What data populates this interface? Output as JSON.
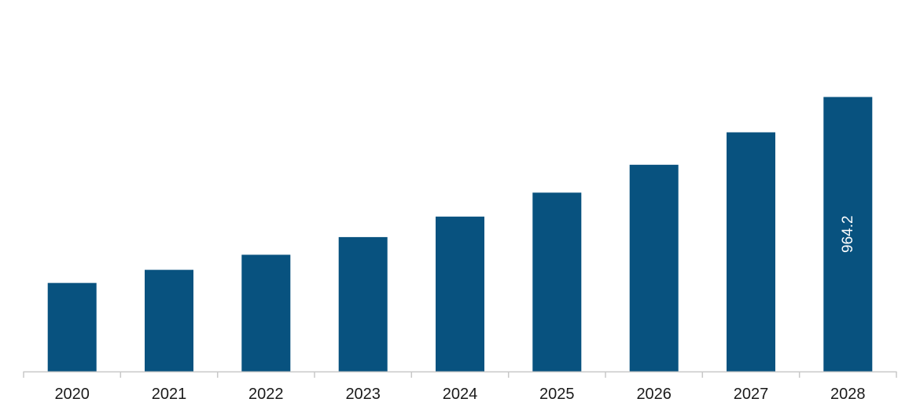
{
  "chart_data": {
    "type": "bar",
    "title": "",
    "xlabel": "",
    "ylabel": "",
    "categories": [
      "2020",
      "2021",
      "2022",
      "2023",
      "2024",
      "2025",
      "2026",
      "2027",
      "2028"
    ],
    "values": [
      311,
      357,
      410,
      472,
      544,
      628,
      726,
      840,
      964.2
    ],
    "data_labels": [
      "",
      "",
      "",
      "",
      "",
      "",
      "",
      "",
      "964.2"
    ],
    "ylim": [
      0,
      1200
    ],
    "grid": false,
    "legend": "none",
    "bar_color": "#08527f",
    "axis_color": "#c8c8c8"
  }
}
